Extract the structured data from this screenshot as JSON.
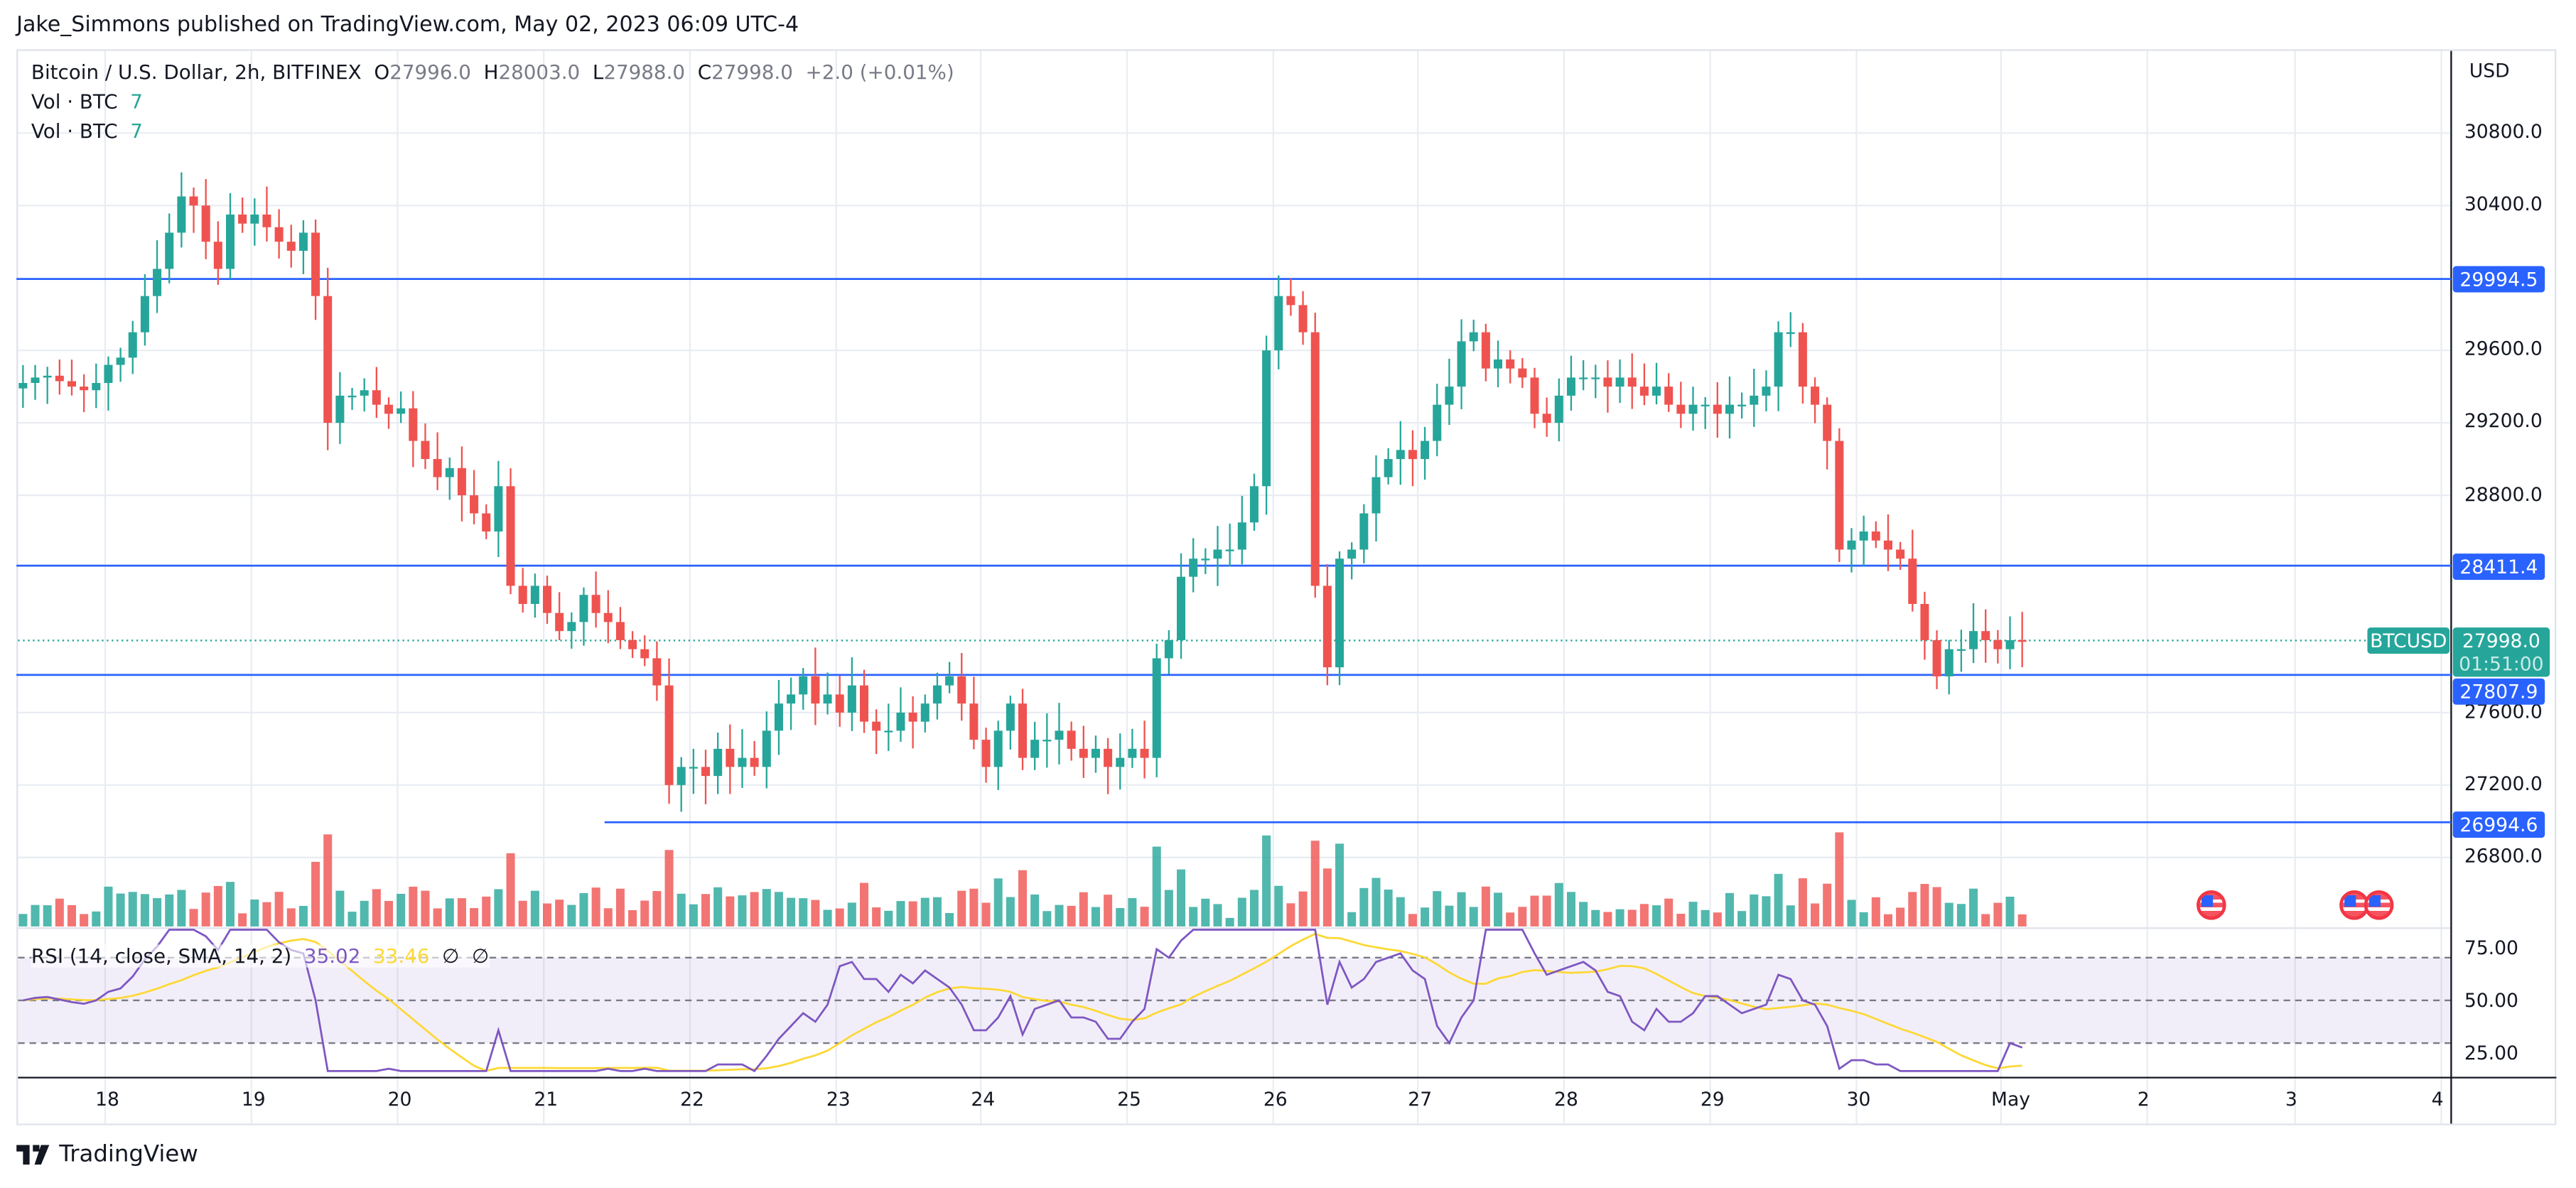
{
  "header": {
    "publish_line": "Jake_Simmons published on TradingView.com, May 02, 2023 06:09 UTC-4"
  },
  "legend": {
    "symbol": "Bitcoin / U.S. Dollar, 2h, BITFINEX",
    "o_label": "O",
    "o": "27996.0",
    "h_label": "H",
    "h": "28003.0",
    "l_label": "L",
    "l": "27988.0",
    "c_label": "C",
    "c": "27998.0",
    "change": "+2.0 (+0.01%)",
    "vol1_label": "Vol · BTC",
    "vol1_value": "7",
    "vol2_label": "Vol · BTC",
    "vol2_value": "7",
    "rsi_label": "RSI (14, close, SMA, 14, 2)",
    "rsi_value": "35.02",
    "rsi_ma_value": "33.46",
    "rsi_na1": "∅",
    "rsi_na2": "∅"
  },
  "price_axis": {
    "currency": "USD",
    "ticks": [
      "30800.0",
      "30400.0",
      "29600.0",
      "29200.0",
      "28800.0",
      "27600.0",
      "27200.0",
      "26800.0"
    ],
    "tick_prices": [
      30800,
      30400,
      29600,
      29200,
      28800,
      27600,
      27200,
      26800
    ]
  },
  "rsi_axis": {
    "ticks": [
      "75.00",
      "50.00",
      "25.00"
    ]
  },
  "horizontal_levels": [
    {
      "price": 29994.5,
      "label": "29994.5",
      "start_x": 10
    },
    {
      "price": 28411.4,
      "label": "28411.4",
      "start_x": 10
    },
    {
      "price": 27807.9,
      "label": "27807.9",
      "start_x": 10
    },
    {
      "price": 26994.6,
      "label": "26994.6",
      "start_x": 368
    }
  ],
  "last_price": {
    "symbol_tag": "BTCUSD",
    "price": "27998.0",
    "countdown": "01:51:00",
    "value": 27998
  },
  "time_axis": {
    "labels": [
      "18",
      "19",
      "20",
      "21",
      "22",
      "23",
      "24",
      "25",
      "26",
      "27",
      "28",
      "29",
      "30",
      "May",
      "2",
      "3",
      "4"
    ],
    "x": [
      64,
      153,
      242,
      331,
      420,
      509,
      597,
      686,
      775,
      863,
      952,
      1041,
      1130,
      1218,
      1307,
      1397,
      1486
    ]
  },
  "branding": {
    "logo_text": "TradingView"
  },
  "colors": {
    "up": "#26a69a",
    "down": "#ef5350",
    "level": "#2962ff",
    "rsi": "#7e57c2",
    "rsi_ma": "#fdd835",
    "grid": "#e9edf3"
  },
  "chart_data": {
    "type": "candlestick",
    "title": "Bitcoin / U.S. Dollar, 2h, BITFINEX",
    "ylabel": "USD",
    "ylim": [
      26400,
      31000
    ],
    "x_start_date": "2023-04-17 ~09:00",
    "interval": "2h",
    "key_levels": [
      29994.5,
      28411.4,
      27807.9,
      26994.6
    ],
    "last_close": 27998.0,
    "closes_approx": [
      29420,
      29450,
      29460,
      29430,
      29400,
      29380,
      29420,
      29520,
      29560,
      29700,
      29900,
      30050,
      30250,
      30450,
      30400,
      30200,
      30050,
      30350,
      30300,
      30350,
      30280,
      30200,
      30150,
      30250,
      29900,
      29200,
      29350,
      29350,
      29380,
      29300,
      29250,
      29280,
      29100,
      29000,
      28900,
      28950,
      28800,
      28700,
      28600,
      28850,
      28300,
      28200,
      28300,
      28150,
      28050,
      28100,
      28250,
      28150,
      28100,
      28000,
      27950,
      27900,
      27750,
      27200,
      27300,
      27300,
      27250,
      27400,
      27300,
      27350,
      27300,
      27500,
      27650,
      27700,
      27800,
      27650,
      27700,
      27600,
      27750,
      27550,
      27500,
      27500,
      27600,
      27550,
      27650,
      27750,
      27800,
      27650,
      27450,
      27300,
      27500,
      27650,
      27350,
      27450,
      27450,
      27500,
      27400,
      27350,
      27400,
      27300,
      27350,
      27400,
      27350,
      27900,
      28000,
      28350,
      28450,
      28450,
      28500,
      28500,
      28650,
      28850,
      29600,
      29900,
      29850,
      29700,
      28300,
      27850,
      28450,
      28500,
      28700,
      28900,
      29000,
      29050,
      29000,
      29100,
      29300,
      29400,
      29650,
      29700,
      29500,
      29550,
      29500,
      29450,
      29250,
      29200,
      29350,
      29450,
      29450,
      29450,
      29400,
      29450,
      29400,
      29350,
      29400,
      29300,
      29250,
      29300,
      29300,
      29250,
      29300,
      29300,
      29350,
      29400,
      29700,
      29700,
      29400,
      29300,
      29100,
      28500,
      28550,
      28600,
      28550,
      28500,
      28450,
      28200,
      28000,
      27800,
      27950,
      27950,
      28050,
      28000,
      27950,
      28000,
      27998
    ],
    "rsi": {
      "overbought": 70,
      "oversold": 30,
      "mid": 50,
      "last": 35.02,
      "ma_last": 33.46
    }
  }
}
